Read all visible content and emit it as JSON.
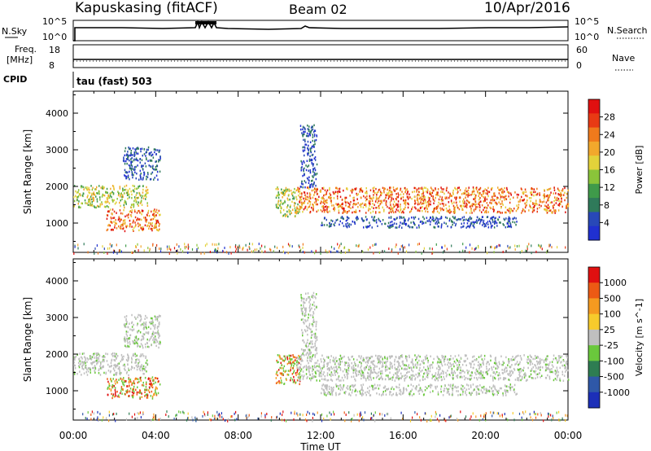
{
  "header": {
    "station": "Kapuskasing (fitACF)",
    "beam": "Beam 02",
    "date": "10/Apr/2016"
  },
  "strip1": {
    "left_label": "N.Sky",
    "right_label": "N.Search",
    "left_ticks": [
      "10^5",
      "10^0"
    ],
    "right_ticks": [
      "10^5",
      "10^0"
    ]
  },
  "strip2": {
    "left_label_line1": "Freq.",
    "left_label_line2": "[MHz]",
    "right_label": "Nave",
    "left_ticks": [
      "18",
      "8"
    ],
    "right_ticks": [
      "60",
      "0"
    ]
  },
  "cpid": {
    "label": "CPID",
    "mode_text": "tau (fast) 503"
  },
  "colors": {
    "power": [
      "#2030d0",
      "#2848b8",
      "#2f7a5a",
      "#3f9a4a",
      "#8ac43a",
      "#e3d23a",
      "#f2a82c",
      "#f07a1c",
      "#e83a14",
      "#e01010"
    ],
    "velocity": [
      "#1c2fb8",
      "#2f58a8",
      "#2e7d52",
      "#6ac83c",
      "#bfbfbf",
      "#f7cb2c",
      "#f59a20",
      "#ec5a14",
      "#e01010"
    ]
  },
  "chart_data": [
    {
      "type": "heatmap",
      "title": "",
      "xlabel": "Time UT",
      "ylabel": "Slant Range [km]",
      "x_ticks": [
        "00:00",
        "04:00",
        "08:00",
        "12:00",
        "16:00",
        "20:00",
        "00:00"
      ],
      "y_ticks": [
        "1000",
        "2000",
        "3000",
        "4000"
      ],
      "ylim": [
        200,
        4600
      ],
      "colorbar_label": "Power [dB]",
      "colorbar_ticks": [
        "4",
        "8",
        "12",
        "16",
        "20",
        "24",
        "28"
      ],
      "colorbar_range": [
        0,
        32
      ],
      "regions": [
        {
          "t0": 0.0,
          "t1": 3.6,
          "r0": 1450,
          "r1": 2050,
          "level": "mid"
        },
        {
          "t0": 2.4,
          "t1": 4.2,
          "r0": 2200,
          "r1": 3100,
          "level": "low"
        },
        {
          "t0": 1.6,
          "t1": 4.2,
          "r0": 800,
          "r1": 1400,
          "level": "high"
        },
        {
          "t0": 9.8,
          "t1": 11.0,
          "r0": 1200,
          "r1": 2000,
          "level": "mid"
        },
        {
          "t0": 10.8,
          "t1": 24.0,
          "r0": 1300,
          "r1": 2000,
          "level": "high"
        },
        {
          "t0": 11.0,
          "t1": 11.8,
          "r0": 2000,
          "r1": 3700,
          "level": "low"
        },
        {
          "t0": 12.0,
          "t1": 21.5,
          "r0": 900,
          "r1": 1200,
          "level": "low"
        }
      ]
    },
    {
      "type": "heatmap",
      "title": "",
      "xlabel": "Time UT",
      "ylabel": "Slant Range [km]",
      "x_ticks": [
        "00:00",
        "04:00",
        "08:00",
        "12:00",
        "16:00",
        "20:00",
        "00:00"
      ],
      "y_ticks": [
        "1000",
        "2000",
        "3000",
        "4000"
      ],
      "ylim": [
        200,
        4600
      ],
      "colorbar_label": "Velocity [m s^-1]",
      "colorbar_ticks": [
        "1000",
        "500",
        "100",
        "25",
        "-25",
        "-100",
        "-500",
        "-1000"
      ],
      "colorbar_range": [
        -1200,
        1200
      ],
      "regions": [
        {
          "t0": 0.0,
          "t1": 3.6,
          "r0": 1450,
          "r1": 2050,
          "level": "zero"
        },
        {
          "t0": 2.4,
          "t1": 4.2,
          "r0": 2200,
          "r1": 3100,
          "level": "zero"
        },
        {
          "t0": 1.6,
          "t1": 4.2,
          "r0": 800,
          "r1": 1400,
          "level": "pos"
        },
        {
          "t0": 9.8,
          "t1": 11.0,
          "r0": 1200,
          "r1": 2000,
          "level": "pos"
        },
        {
          "t0": 10.8,
          "t1": 24.0,
          "r0": 1300,
          "r1": 2000,
          "level": "zero"
        },
        {
          "t0": 11.0,
          "t1": 11.8,
          "r0": 2000,
          "r1": 3700,
          "level": "zero"
        },
        {
          "t0": 12.0,
          "t1": 21.5,
          "r0": 900,
          "r1": 1200,
          "level": "zero"
        }
      ]
    }
  ]
}
